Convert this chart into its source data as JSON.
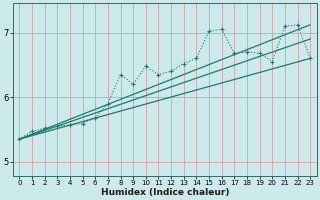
{
  "xlabel": "Humidex (Indice chaleur)",
  "xlim": [
    -0.5,
    23.5
  ],
  "ylim": [
    4.78,
    7.45
  ],
  "yticks": [
    5,
    6,
    7
  ],
  "xticks": [
    0,
    1,
    2,
    3,
    4,
    5,
    6,
    7,
    8,
    9,
    10,
    11,
    12,
    13,
    14,
    15,
    16,
    17,
    18,
    19,
    20,
    21,
    22,
    23
  ],
  "bg_color": "#cce9eb",
  "grid_color": "#d4a0a0",
  "line_color": "#1e7a70",
  "figsize": [
    3.2,
    2.0
  ],
  "dpi": 100,
  "line1_x": [
    0,
    1,
    2,
    3,
    4,
    5,
    6,
    7,
    8,
    9,
    10,
    11,
    12,
    13,
    14,
    15,
    16,
    17,
    18,
    19,
    20,
    21,
    22,
    23
  ],
  "line1_y": [
    5.35,
    5.47,
    5.52,
    5.55,
    5.57,
    5.59,
    5.68,
    5.9,
    6.35,
    6.2,
    6.48,
    6.35,
    6.4,
    6.52,
    6.6,
    7.02,
    7.05,
    6.68,
    6.7,
    6.68,
    6.55,
    7.1,
    7.12,
    6.6
  ],
  "line2_x": [
    0,
    23
  ],
  "line2_y": [
    5.35,
    7.12
  ],
  "line3_x": [
    0,
    23
  ],
  "line3_y": [
    5.35,
    6.9
  ],
  "line4_x": [
    0,
    23
  ],
  "line4_y": [
    5.35,
    6.6
  ]
}
